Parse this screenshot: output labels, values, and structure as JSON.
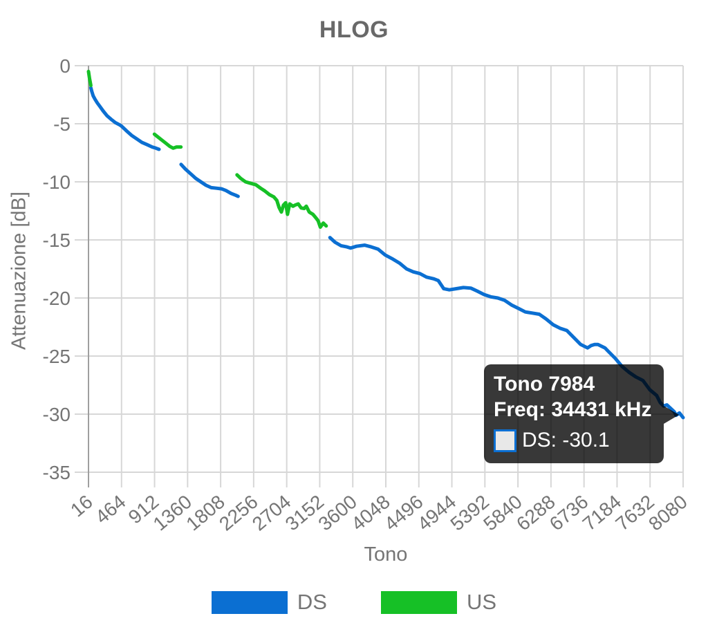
{
  "chart": {
    "title": "HLOG",
    "xlabel": "Tono",
    "ylabel": "Attenuazione [dB]"
  },
  "chart_data": {
    "type": "line",
    "title": "HLOG",
    "xlabel": "Tono",
    "ylabel": "Attenuazione [dB]",
    "xlim": [
      16,
      8080
    ],
    "ylim": [
      -35,
      0
    ],
    "x_ticks": [
      16,
      464,
      912,
      1360,
      1808,
      2256,
      2704,
      3152,
      3600,
      4048,
      4496,
      4944,
      5392,
      5840,
      6288,
      6736,
      7184,
      7632,
      8080
    ],
    "y_ticks": [
      0,
      -5,
      -10,
      -15,
      -20,
      -25,
      -30,
      -35
    ],
    "grid": true,
    "legend_position": "bottom",
    "grid_color": "#d7d7d7",
    "axis_line_color": "#9f9f9f",
    "series": [
      {
        "name": "DS",
        "color": "#0b6fd2",
        "segments": [
          [
            [
              48,
              -1.9
            ],
            [
              60,
              -2.2
            ],
            [
              80,
              -2.6
            ],
            [
              105,
              -2.9
            ],
            [
              135,
              -3.2
            ],
            [
              170,
              -3.5
            ],
            [
              215,
              -3.9
            ],
            [
              265,
              -4.3
            ],
            [
              320,
              -4.6
            ],
            [
              380,
              -4.9
            ],
            [
              440,
              -5.1
            ],
            [
              464,
              -5.2
            ],
            [
              530,
              -5.6
            ],
            [
              600,
              -6.0
            ],
            [
              670,
              -6.3
            ],
            [
              740,
              -6.6
            ],
            [
              810,
              -6.8
            ],
            [
              880,
              -7.0
            ],
            [
              930,
              -7.1
            ],
            [
              972,
              -7.2
            ]
          ],
          [
            [
              1272,
              -8.5
            ],
            [
              1330,
              -8.9
            ],
            [
              1400,
              -9.3
            ],
            [
              1470,
              -9.7
            ],
            [
              1540,
              -10.0
            ],
            [
              1610,
              -10.3
            ],
            [
              1680,
              -10.5
            ],
            [
              1750,
              -10.55
            ],
            [
              1820,
              -10.6
            ],
            [
              1880,
              -10.75
            ],
            [
              1950,
              -11.0
            ],
            [
              2010,
              -11.15
            ],
            [
              2045,
              -11.25
            ]
          ],
          [
            [
              3290,
              -14.8
            ],
            [
              3360,
              -15.2
            ],
            [
              3440,
              -15.5
            ],
            [
              3520,
              -15.6
            ],
            [
              3570,
              -15.7
            ],
            [
              3650,
              -15.55
            ],
            [
              3760,
              -15.45
            ],
            [
              3850,
              -15.6
            ],
            [
              3944,
              -15.8
            ],
            [
              4040,
              -16.3
            ],
            [
              4130,
              -16.6
            ],
            [
              4235,
              -17.0
            ],
            [
              4330,
              -17.5
            ],
            [
              4420,
              -17.75
            ],
            [
              4510,
              -17.9
            ],
            [
              4600,
              -18.2
            ],
            [
              4700,
              -18.35
            ],
            [
              4760,
              -18.5
            ],
            [
              4834,
              -19.2
            ],
            [
              4910,
              -19.3
            ],
            [
              5000,
              -19.2
            ],
            [
              5100,
              -19.1
            ],
            [
              5200,
              -19.15
            ],
            [
              5285,
              -19.4
            ],
            [
              5380,
              -19.7
            ],
            [
              5470,
              -19.9
            ],
            [
              5566,
              -20.0
            ],
            [
              5660,
              -20.2
            ],
            [
              5753,
              -20.6
            ],
            [
              5847,
              -20.9
            ],
            [
              5940,
              -21.2
            ],
            [
              6035,
              -21.3
            ],
            [
              6130,
              -21.4
            ],
            [
              6220,
              -21.8
            ],
            [
              6316,
              -22.3
            ],
            [
              6410,
              -22.6
            ],
            [
              6503,
              -22.8
            ],
            [
              6597,
              -23.4
            ],
            [
              6690,
              -24.0
            ],
            [
              6784,
              -24.3
            ],
            [
              6830,
              -24.1
            ],
            [
              6880,
              -24.0
            ],
            [
              6925,
              -24.0
            ],
            [
              7020,
              -24.3
            ],
            [
              7066,
              -24.6
            ],
            [
              7160,
              -25.2
            ],
            [
              7253,
              -25.9
            ],
            [
              7347,
              -26.4
            ],
            [
              7440,
              -26.8
            ],
            [
              7535,
              -27.1
            ],
            [
              7628,
              -27.9
            ],
            [
              7722,
              -28.4
            ],
            [
              7770,
              -29.0
            ],
            [
              7816,
              -29.3
            ],
            [
              7860,
              -29.2
            ],
            [
              7910,
              -29.5
            ],
            [
              7960,
              -29.8
            ],
            [
              7984,
              -30.1
            ],
            [
              8030,
              -29.9
            ],
            [
              8080,
              -30.3
            ]
          ]
        ]
      },
      {
        "name": "US",
        "color": "#16c026",
        "segments": [
          [
            [
              16,
              -0.5
            ],
            [
              30,
              -1.1
            ],
            [
              48,
              -1.7
            ]
          ],
          [
            [
              910,
              -5.9
            ],
            [
              950,
              -6.1
            ],
            [
              1000,
              -6.35
            ],
            [
              1060,
              -6.65
            ],
            [
              1120,
              -6.95
            ],
            [
              1165,
              -7.1
            ],
            [
              1210,
              -7.0
            ],
            [
              1270,
              -7.0
            ]
          ],
          [
            [
              2030,
              -9.4
            ],
            [
              2080,
              -9.7
            ],
            [
              2145,
              -10.0
            ],
            [
              2200,
              -10.1
            ],
            [
              2285,
              -10.25
            ],
            [
              2350,
              -10.55
            ],
            [
              2410,
              -10.8
            ],
            [
              2470,
              -11.1
            ],
            [
              2530,
              -11.3
            ],
            [
              2570,
              -11.6
            ],
            [
              2600,
              -12.2
            ],
            [
              2632,
              -12.6
            ],
            [
              2660,
              -12.0
            ],
            [
              2690,
              -11.8
            ],
            [
              2715,
              -12.8
            ],
            [
              2745,
              -11.9
            ],
            [
              2790,
              -12.1
            ],
            [
              2820,
              -12.0
            ],
            [
              2860,
              -11.9
            ],
            [
              2900,
              -12.25
            ],
            [
              2940,
              -12.3
            ],
            [
              2970,
              -12.1
            ],
            [
              3010,
              -12.6
            ],
            [
              3060,
              -12.8
            ],
            [
              3100,
              -13.1
            ],
            [
              3130,
              -13.35
            ],
            [
              3160,
              -13.9
            ],
            [
              3200,
              -13.55
            ],
            [
              3240,
              -13.8
            ]
          ]
        ]
      }
    ]
  },
  "tooltip": {
    "title": "Tono 7984",
    "freq_line": "Freq: 34431 kHz",
    "value_line": "DS: -30.1",
    "tone": 7984,
    "freq_khz": 34431,
    "value_db": -30.1,
    "series": "DS",
    "background": "rgba(0,0,0,0.78)",
    "swatch_fill": "#e8e8e8"
  },
  "legend": {
    "items": [
      {
        "label": "DS",
        "color": "#0b6fd2"
      },
      {
        "label": "US",
        "color": "#16c026"
      }
    ]
  }
}
